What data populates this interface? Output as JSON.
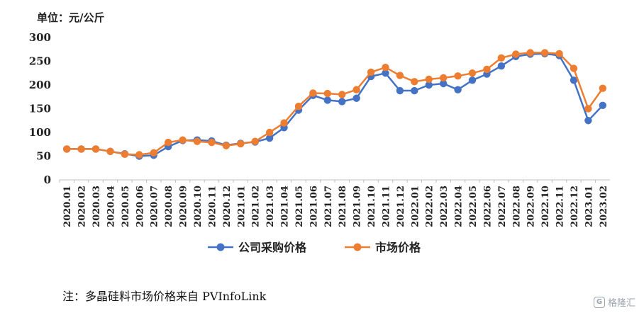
{
  "unit_label": "单位：元/公斤",
  "note": "注：多晶硅料市场价格来自 PVInfoLink",
  "watermark": {
    "text": "格隆汇",
    "icon": "G"
  },
  "colors": {
    "company": "#4472C4",
    "market": "#ED7D31"
  },
  "chart_data": {
    "type": "line",
    "title": "",
    "xlabel": "",
    "ylabel": "",
    "ylim": [
      0,
      300
    ],
    "yticks": [
      0,
      50,
      100,
      150,
      200,
      250,
      300
    ],
    "grid": false,
    "legend": "bottom",
    "categories": [
      "2020.01",
      "2020.02",
      "2020.03",
      "2020.04",
      "2020.05",
      "2020.06",
      "2020.07",
      "2020.08",
      "2020.09",
      "2020.10",
      "2020.11",
      "2020.12",
      "2021.01",
      "2021.02",
      "2021.03",
      "2021.04",
      "2021.05",
      "2021.06",
      "2021.07",
      "2021.08",
      "2021.09",
      "2021.10",
      "2021.11",
      "2021.12",
      "2022.01",
      "2022.02",
      "2022.03",
      "2022.04",
      "2022.05",
      "2022.06",
      "2022.07",
      "2022.08",
      "2022.09",
      "2022.10",
      "2022.11",
      "2022.12",
      "2023.01",
      "2023.02"
    ],
    "series": [
      {
        "name": "公司采购价格",
        "color": "#4472C4",
        "values": [
          65,
          65,
          65,
          60,
          55,
          50,
          52,
          70,
          83,
          84,
          82,
          73,
          77,
          80,
          88,
          110,
          147,
          178,
          168,
          165,
          172,
          218,
          225,
          188,
          188,
          200,
          203,
          190,
          210,
          223,
          240,
          260,
          265,
          266,
          262,
          210,
          125,
          157
        ]
      },
      {
        "name": "市场价格",
        "color": "#ED7D31",
        "values": [
          65,
          65,
          65,
          60,
          54,
          53,
          57,
          79,
          84,
          81,
          79,
          72,
          76,
          81,
          100,
          120,
          155,
          183,
          182,
          180,
          190,
          227,
          237,
          220,
          207,
          212,
          215,
          219,
          225,
          233,
          257,
          265,
          268,
          268,
          266,
          235,
          150,
          193
        ]
      }
    ]
  }
}
